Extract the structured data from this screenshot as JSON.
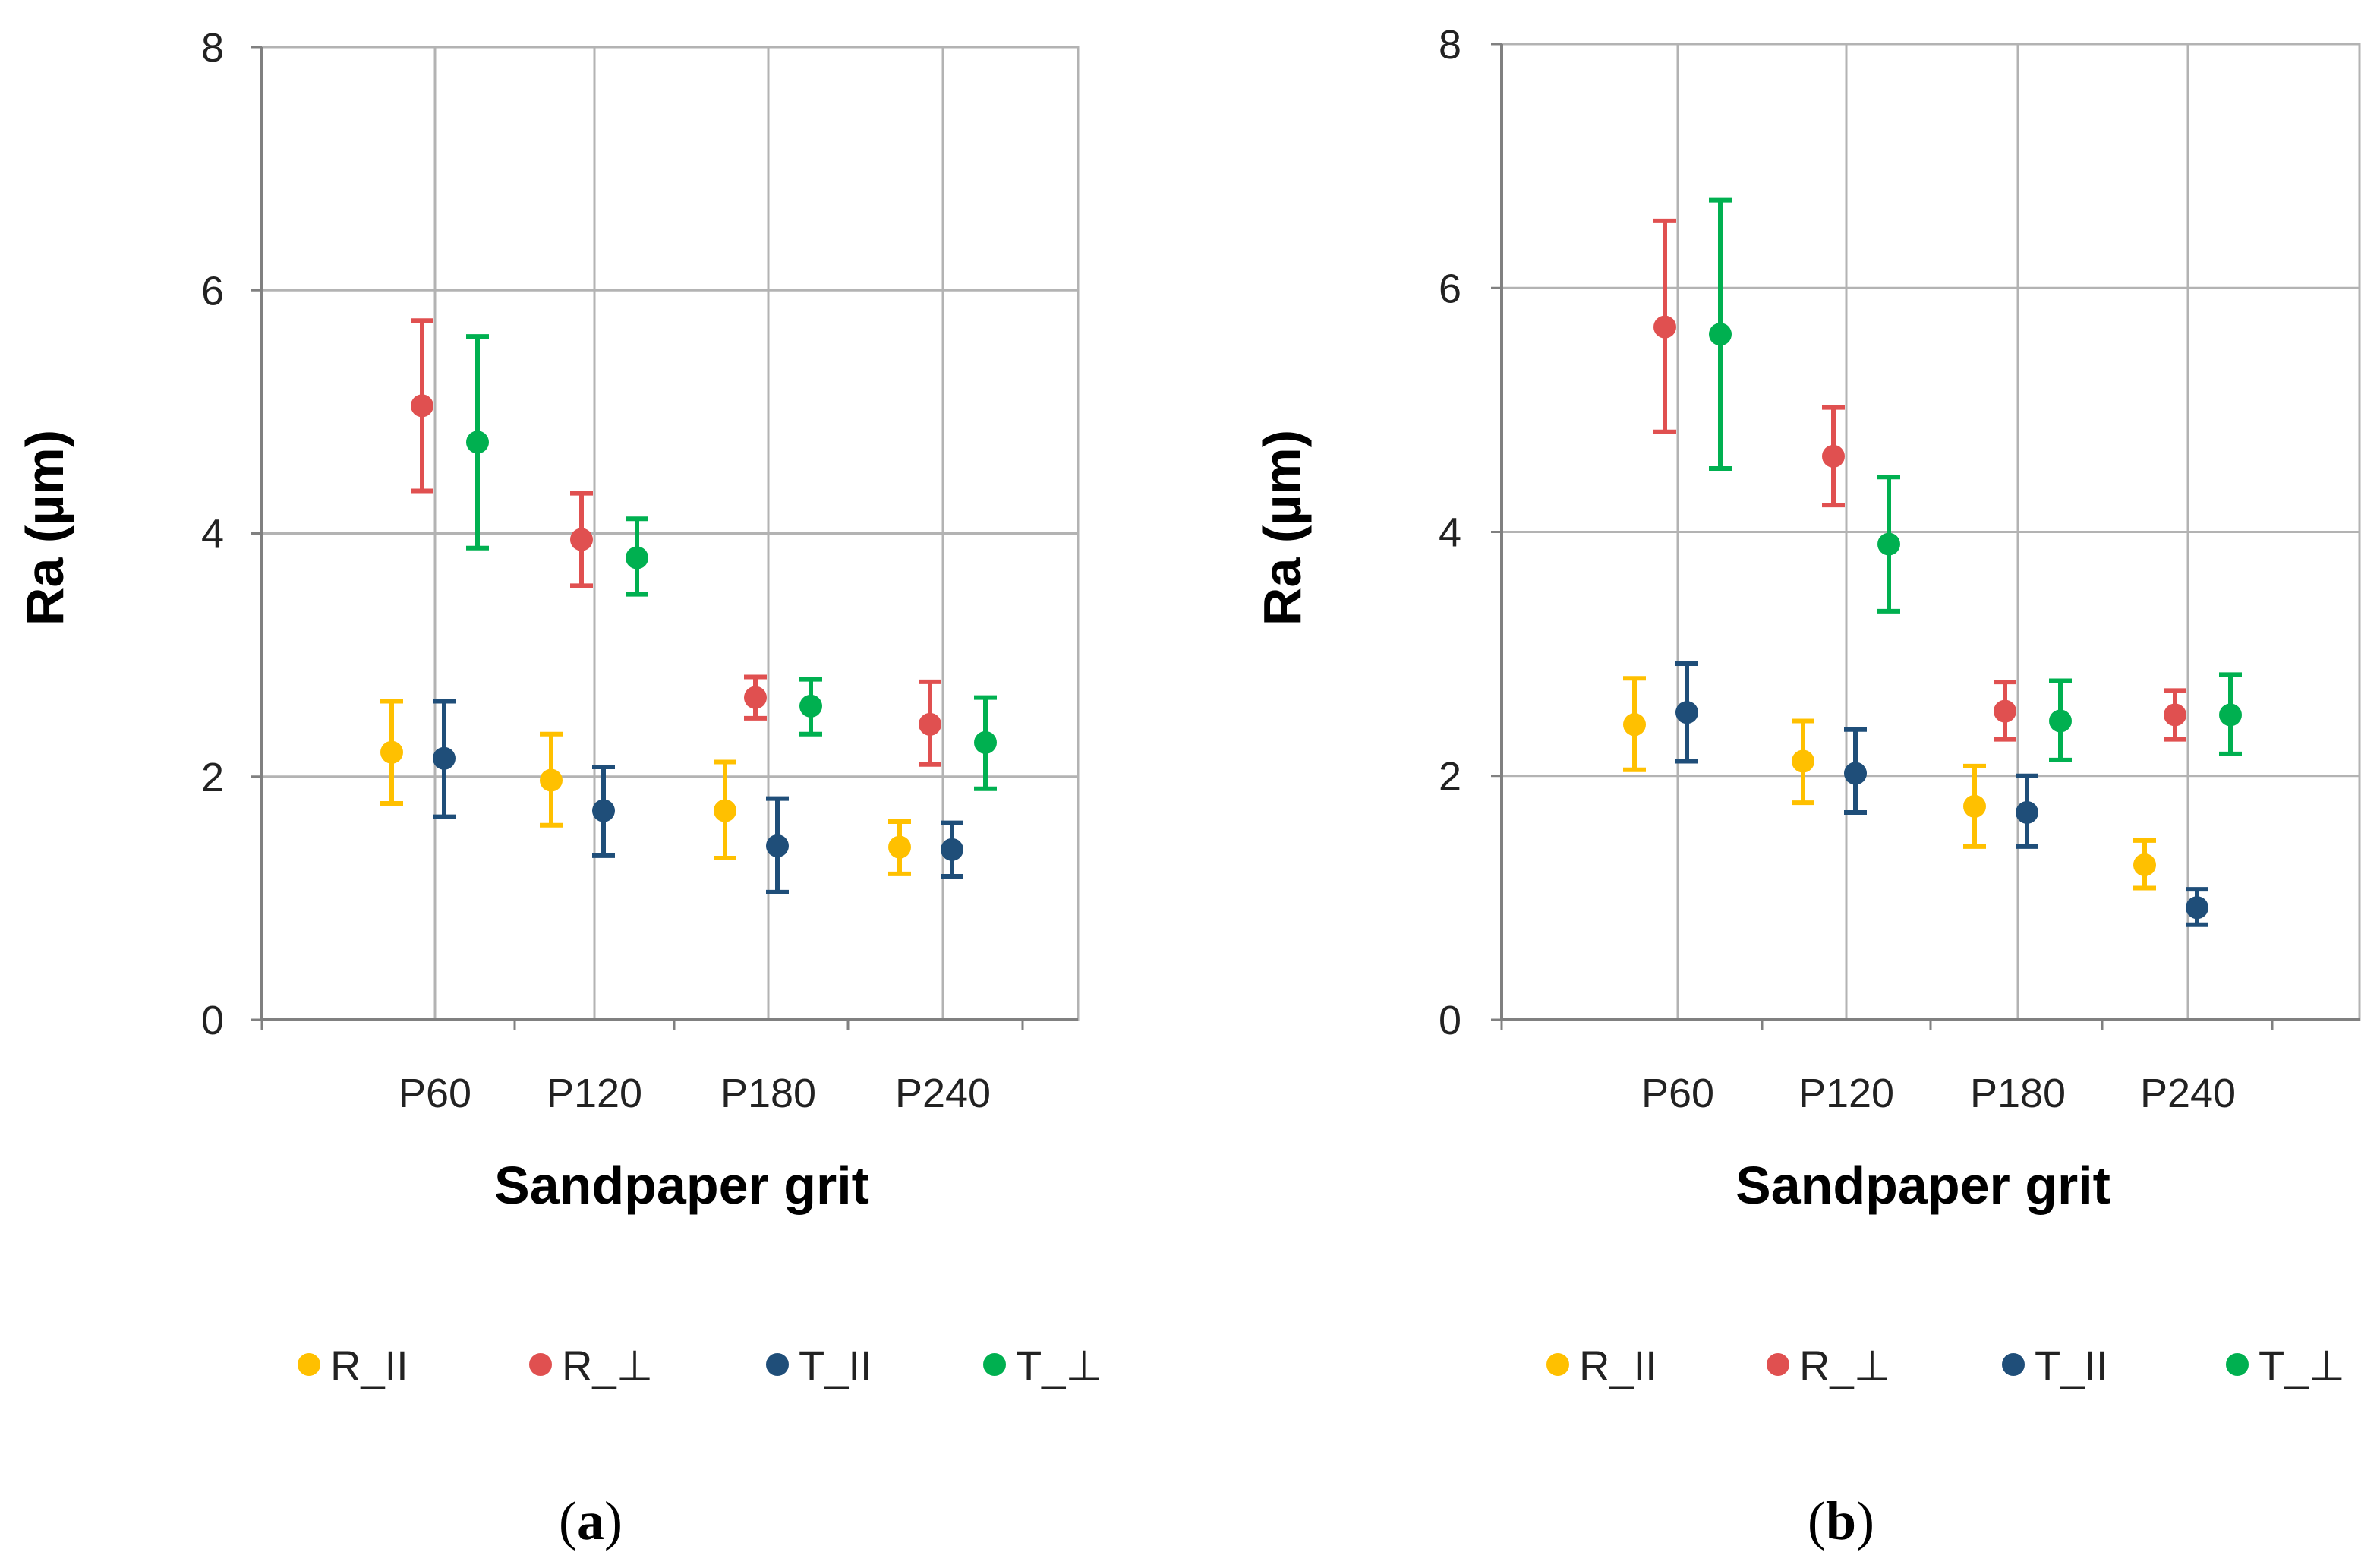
{
  "colors": {
    "R_II": "#FFC000",
    "R_perp": "#E05050",
    "T_II": "#1F4E79",
    "T_perp": "#00B050",
    "grid": "#B3B3B3",
    "axis": "#808080"
  },
  "chart_data": [
    {
      "id": "a",
      "type": "scatter",
      "caption_prefix": "(",
      "caption_label": "a",
      "caption_suffix": ")",
      "xlabel": "Sandpaper grit",
      "ylabel": "Ra (µm)",
      "ylim": [
        0,
        8
      ],
      "yticks": [
        "0",
        "2",
        "4",
        "6",
        "8"
      ],
      "categories": [
        "P60",
        "P120",
        "P180",
        "P240"
      ],
      "grid": true,
      "legend_position": "bottom",
      "series": [
        {
          "key": "R_II",
          "name": "R_II",
          "values": [
            2.2,
            1.97,
            1.72,
            1.42
          ],
          "err_low": [
            1.78,
            1.6,
            1.33,
            1.2
          ],
          "err_high": [
            2.62,
            2.35,
            2.12,
            1.63
          ]
        },
        {
          "key": "R_perp",
          "name": "R_⊥",
          "values": [
            5.05,
            3.95,
            2.65,
            2.43
          ],
          "err_low": [
            4.35,
            3.57,
            2.48,
            2.1
          ],
          "err_high": [
            5.75,
            4.33,
            2.82,
            2.78
          ]
        },
        {
          "key": "T_II",
          "name": "T_II",
          "values": [
            2.15,
            1.72,
            1.43,
            1.4
          ],
          "err_low": [
            1.67,
            1.35,
            1.05,
            1.18
          ],
          "err_high": [
            2.62,
            2.08,
            1.82,
            1.62
          ]
        },
        {
          "key": "T_perp",
          "name": "T_⊥",
          "values": [
            4.75,
            3.8,
            2.58,
            2.28
          ],
          "err_low": [
            3.88,
            3.5,
            2.35,
            1.9
          ],
          "err_high": [
            5.62,
            4.12,
            2.8,
            2.65
          ]
        }
      ]
    },
    {
      "id": "b",
      "type": "scatter",
      "caption_prefix": "(",
      "caption_label": "b",
      "caption_suffix": ")",
      "xlabel": "Sandpaper grit",
      "ylabel": "Ra (µm)",
      "ylim": [
        0,
        8
      ],
      "yticks": [
        "0",
        "2",
        "4",
        "6",
        "8"
      ],
      "categories": [
        "P60",
        "P120",
        "P180",
        "P240"
      ],
      "grid": true,
      "legend_position": "bottom",
      "series": [
        {
          "key": "R_II",
          "name": "R_II",
          "values": [
            2.42,
            2.12,
            1.75,
            1.27
          ],
          "err_low": [
            2.05,
            1.78,
            1.42,
            1.08
          ],
          "err_high": [
            2.8,
            2.45,
            2.08,
            1.47
          ]
        },
        {
          "key": "R_perp",
          "name": "R_⊥",
          "values": [
            5.68,
            4.62,
            2.53,
            2.5
          ],
          "err_low": [
            4.82,
            4.22,
            2.3,
            2.3
          ],
          "err_high": [
            6.55,
            5.02,
            2.77,
            2.7
          ]
        },
        {
          "key": "T_II",
          "name": "T_II",
          "values": [
            2.52,
            2.02,
            1.7,
            0.92
          ],
          "err_low": [
            2.12,
            1.7,
            1.42,
            0.78
          ],
          "err_high": [
            2.92,
            2.38,
            2.0,
            1.07
          ]
        },
        {
          "key": "T_perp",
          "name": "T_⊥",
          "values": [
            5.62,
            3.9,
            2.45,
            2.5
          ],
          "err_low": [
            4.52,
            3.35,
            2.13,
            2.18
          ],
          "err_high": [
            6.72,
            4.45,
            2.78,
            2.83
          ]
        }
      ]
    }
  ]
}
